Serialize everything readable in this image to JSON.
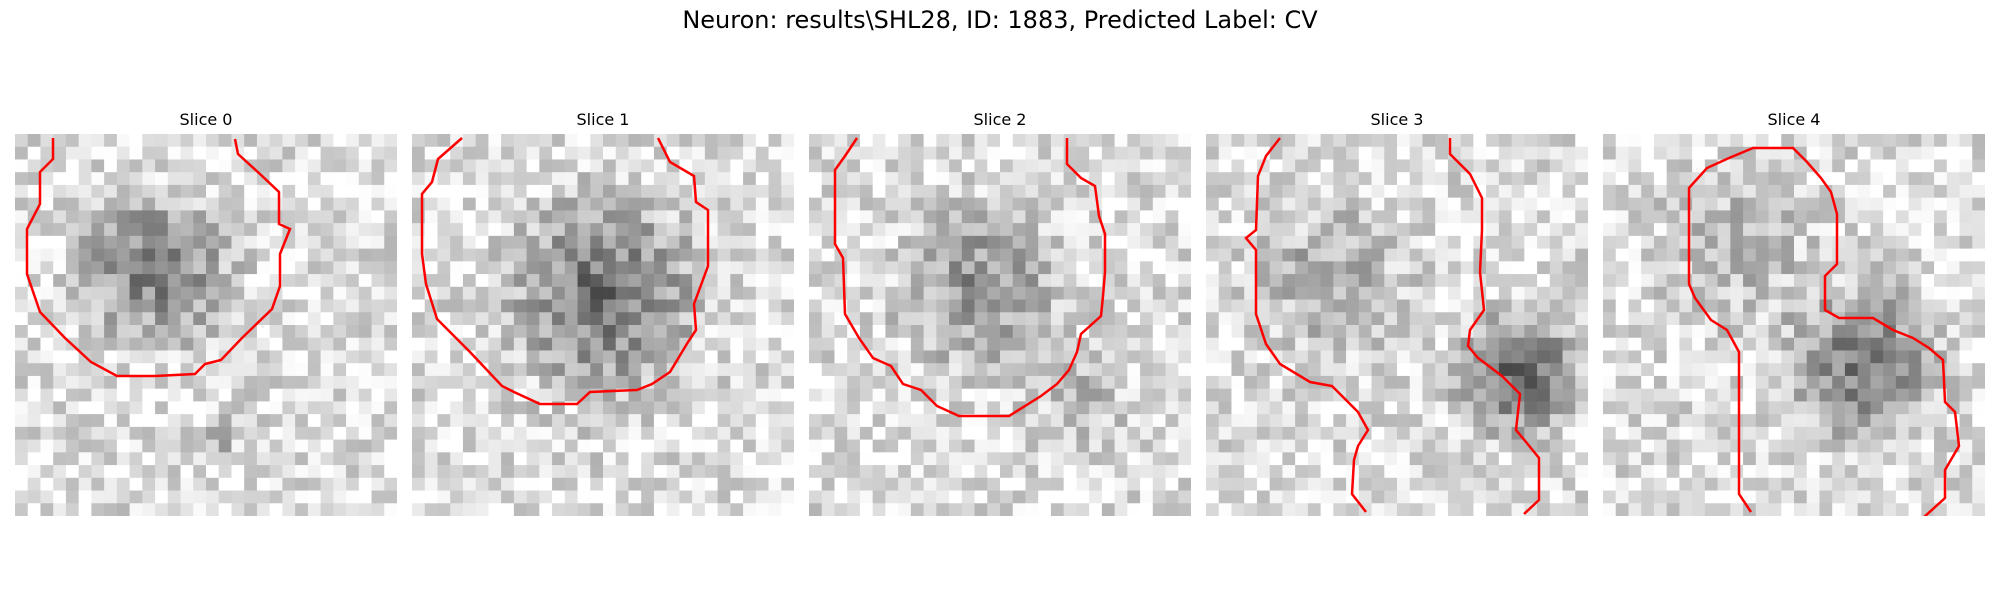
{
  "figure": {
    "title": "Neuron: results\\SHL28, ID: 1883, Predicted Label: CV",
    "contour_color": "#ff0000",
    "colormap": "grayscale",
    "grid_size": 30
  },
  "slices": [
    {
      "label": "Slice 0",
      "image": "grainy grayscale micrograph with dark roughly circular cell outlined in red"
    },
    {
      "label": "Slice 1",
      "image": "grainy grayscale micrograph with dark-edged circular cell outlined in red"
    },
    {
      "label": "Slice 2",
      "image": "grainy grayscale micrograph with circular cell outlined in red"
    },
    {
      "label": "Slice 3",
      "image": "grainy grayscale micrograph with two cells; red contour runs between them"
    },
    {
      "label": "Slice 4",
      "image": "grainy grayscale micrograph with two cells; red contour runs between them"
    }
  ]
}
